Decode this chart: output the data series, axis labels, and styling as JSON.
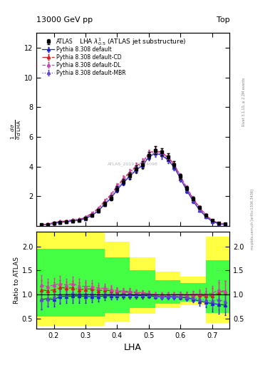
{
  "title_top": "13000 GeV pp",
  "title_right": "Top",
  "panel_title": "LHA $\\lambda^1_{0.5}$ (ATLAS jet substructure)",
  "xlabel": "LHA",
  "ylabel_main": "$\\frac{1}{\\sigma}\\frac{d\\sigma}{d\\,\\mathrm{LHA}}$",
  "ylabel_ratio": "Ratio to ATLAS",
  "rivet_label": "Rivet 3.1.10, ≥ 2.2M events",
  "arxiv_label": "mcplots.cern.ch [arXiv:1306.3436]",
  "watermark": "ATLAS_2019_I1724098",
  "ylim_main": [
    0,
    13
  ],
  "ylim_ratio": [
    0.3,
    2.3
  ],
  "yticks_main": [
    2,
    4,
    6,
    8,
    10,
    12
  ],
  "yticks_ratio": [
    0.5,
    1.0,
    1.5,
    2.0
  ],
  "xlim": [
    0.145,
    0.755
  ],
  "xticks": [
    0.2,
    0.3,
    0.4,
    0.5,
    0.6,
    0.7
  ],
  "atlas_x": [
    0.16,
    0.18,
    0.2,
    0.22,
    0.24,
    0.26,
    0.28,
    0.3,
    0.32,
    0.34,
    0.36,
    0.38,
    0.4,
    0.42,
    0.44,
    0.46,
    0.48,
    0.5,
    0.52,
    0.54,
    0.56,
    0.58,
    0.6,
    0.62,
    0.64,
    0.66,
    0.68,
    0.7,
    0.72,
    0.74
  ],
  "atlas_y": [
    0.1,
    0.12,
    0.2,
    0.26,
    0.3,
    0.35,
    0.4,
    0.52,
    0.75,
    1.05,
    1.5,
    1.9,
    2.5,
    3.0,
    3.4,
    3.85,
    4.15,
    4.75,
    5.1,
    5.0,
    4.65,
    4.15,
    3.35,
    2.55,
    1.85,
    1.25,
    0.75,
    0.38,
    0.2,
    0.14
  ],
  "atlas_yerr": [
    0.02,
    0.02,
    0.03,
    0.04,
    0.04,
    0.05,
    0.06,
    0.07,
    0.09,
    0.11,
    0.13,
    0.15,
    0.17,
    0.19,
    0.21,
    0.23,
    0.24,
    0.25,
    0.26,
    0.25,
    0.23,
    0.21,
    0.18,
    0.16,
    0.13,
    0.11,
    0.08,
    0.06,
    0.04,
    0.03
  ],
  "py_default_x": [
    0.16,
    0.18,
    0.2,
    0.22,
    0.24,
    0.26,
    0.28,
    0.3,
    0.32,
    0.34,
    0.36,
    0.38,
    0.4,
    0.42,
    0.44,
    0.46,
    0.48,
    0.5,
    0.52,
    0.54,
    0.56,
    0.58,
    0.6,
    0.62,
    0.64,
    0.66,
    0.68,
    0.7,
    0.72,
    0.74
  ],
  "py_default_y": [
    0.09,
    0.11,
    0.18,
    0.25,
    0.29,
    0.34,
    0.39,
    0.5,
    0.72,
    1.01,
    1.46,
    1.86,
    2.44,
    2.94,
    3.34,
    3.78,
    4.07,
    4.65,
    4.9,
    4.78,
    4.45,
    3.96,
    3.18,
    2.38,
    1.68,
    1.08,
    0.63,
    0.31,
    0.16,
    0.11
  ],
  "py_default_yerr": [
    0.02,
    0.02,
    0.03,
    0.04,
    0.04,
    0.05,
    0.06,
    0.07,
    0.09,
    0.11,
    0.13,
    0.15,
    0.17,
    0.19,
    0.21,
    0.23,
    0.24,
    0.25,
    0.26,
    0.25,
    0.23,
    0.21,
    0.18,
    0.16,
    0.13,
    0.11,
    0.08,
    0.06,
    0.04,
    0.03
  ],
  "py_cd_x": [
    0.16,
    0.18,
    0.2,
    0.22,
    0.24,
    0.26,
    0.28,
    0.3,
    0.32,
    0.34,
    0.36,
    0.38,
    0.4,
    0.42,
    0.44,
    0.46,
    0.48,
    0.5,
    0.52,
    0.54,
    0.56,
    0.58,
    0.6,
    0.62,
    0.64,
    0.66,
    0.68,
    0.7,
    0.72,
    0.74
  ],
  "py_cd_y": [
    0.11,
    0.13,
    0.22,
    0.3,
    0.34,
    0.4,
    0.44,
    0.58,
    0.84,
    1.14,
    1.64,
    2.06,
    2.66,
    3.16,
    3.59,
    3.99,
    4.26,
    4.86,
    5.06,
    4.93,
    4.63,
    4.13,
    3.33,
    2.53,
    1.83,
    1.23,
    0.73,
    0.37,
    0.21,
    0.15
  ],
  "py_cd_yerr": [
    0.02,
    0.02,
    0.03,
    0.04,
    0.04,
    0.05,
    0.06,
    0.07,
    0.09,
    0.11,
    0.13,
    0.15,
    0.17,
    0.19,
    0.21,
    0.23,
    0.24,
    0.25,
    0.26,
    0.25,
    0.23,
    0.21,
    0.18,
    0.16,
    0.13,
    0.11,
    0.08,
    0.06,
    0.04,
    0.03
  ],
  "py_dl_x": [
    0.16,
    0.18,
    0.2,
    0.22,
    0.24,
    0.26,
    0.28,
    0.3,
    0.32,
    0.34,
    0.36,
    0.38,
    0.4,
    0.42,
    0.44,
    0.46,
    0.48,
    0.5,
    0.52,
    0.54,
    0.56,
    0.58,
    0.6,
    0.62,
    0.64,
    0.66,
    0.68,
    0.7,
    0.72,
    0.74
  ],
  "py_dl_y": [
    0.12,
    0.14,
    0.24,
    0.32,
    0.36,
    0.43,
    0.47,
    0.61,
    0.88,
    1.19,
    1.7,
    2.12,
    2.72,
    3.22,
    3.65,
    4.05,
    4.32,
    4.9,
    5.12,
    4.97,
    4.67,
    4.17,
    3.37,
    2.57,
    1.87,
    1.27,
    0.77,
    0.39,
    0.22,
    0.15
  ],
  "py_dl_yerr": [
    0.02,
    0.02,
    0.03,
    0.04,
    0.04,
    0.05,
    0.06,
    0.07,
    0.09,
    0.11,
    0.13,
    0.15,
    0.17,
    0.19,
    0.21,
    0.23,
    0.24,
    0.25,
    0.26,
    0.25,
    0.23,
    0.21,
    0.18,
    0.16,
    0.13,
    0.11,
    0.08,
    0.06,
    0.04,
    0.03
  ],
  "py_mbr_x": [
    0.16,
    0.18,
    0.2,
    0.22,
    0.24,
    0.26,
    0.28,
    0.3,
    0.32,
    0.34,
    0.36,
    0.38,
    0.4,
    0.42,
    0.44,
    0.46,
    0.48,
    0.5,
    0.52,
    0.54,
    0.56,
    0.58,
    0.6,
    0.62,
    0.64,
    0.66,
    0.68,
    0.7,
    0.72,
    0.74
  ],
  "py_mbr_y": [
    0.09,
    0.11,
    0.19,
    0.26,
    0.3,
    0.36,
    0.41,
    0.53,
    0.76,
    1.06,
    1.52,
    1.93,
    2.53,
    3.03,
    3.43,
    3.87,
    4.16,
    4.75,
    4.97,
    4.84,
    4.52,
    4.02,
    3.23,
    2.43,
    1.73,
    1.13,
    0.66,
    0.33,
    0.18,
    0.12
  ],
  "py_mbr_yerr": [
    0.02,
    0.02,
    0.03,
    0.04,
    0.04,
    0.05,
    0.06,
    0.07,
    0.09,
    0.11,
    0.13,
    0.15,
    0.17,
    0.19,
    0.21,
    0.23,
    0.24,
    0.25,
    0.26,
    0.25,
    0.23,
    0.21,
    0.18,
    0.16,
    0.13,
    0.11,
    0.08,
    0.06,
    0.04,
    0.03
  ],
  "bg_yellow": "#ffff44",
  "bg_green": "#44ff44",
  "color_default": "#2222cc",
  "color_cd": "#cc2222",
  "color_dl": "#cc44aa",
  "color_mbr": "#6644cc",
  "color_atlas": "#000000",
  "band_edges": [
    0.145,
    0.2,
    0.28,
    0.3,
    0.36,
    0.44,
    0.52,
    0.6,
    0.68,
    0.755
  ],
  "yellow_lo": [
    0.35,
    0.35,
    0.35,
    0.35,
    0.45,
    0.6,
    0.72,
    0.78,
    0.42,
    0.42
  ],
  "yellow_hi": [
    2.3,
    2.3,
    2.3,
    2.3,
    2.1,
    1.78,
    1.48,
    1.38,
    2.2,
    2.2
  ],
  "green_lo": [
    0.55,
    0.55,
    0.55,
    0.55,
    0.62,
    0.72,
    0.82,
    0.86,
    0.62,
    0.62
  ],
  "green_hi": [
    1.95,
    1.95,
    1.95,
    1.95,
    1.78,
    1.5,
    1.3,
    1.24,
    1.72,
    1.72
  ]
}
